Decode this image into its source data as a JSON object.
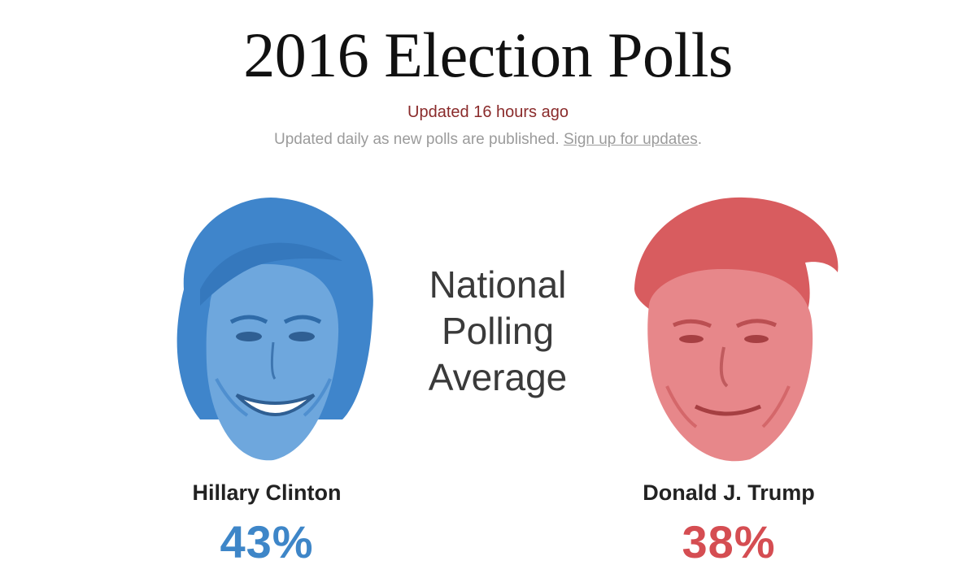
{
  "header": {
    "title": "2016 Election Polls",
    "updated": "Updated 16 hours ago",
    "subline_text": "Updated daily as new polls are published. ",
    "signup_link": "Sign up for updates",
    "subline_end": "."
  },
  "center": {
    "line1": "National",
    "line2": "Polling",
    "line3": "Average"
  },
  "candidates": [
    {
      "name": "Hillary Clinton",
      "percent": "43%",
      "percent_value": 43,
      "color": "#3e86c8"
    },
    {
      "name": "Donald J. Trump",
      "percent": "38%",
      "percent_value": 38,
      "color": "#d54d52"
    }
  ]
}
